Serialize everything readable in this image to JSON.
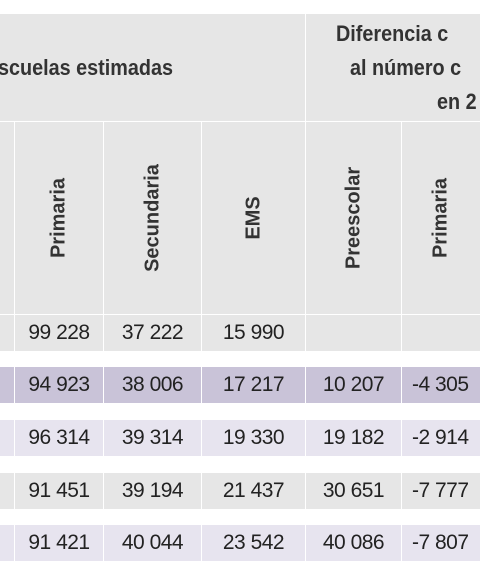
{
  "header": {
    "left_group_title": "scuelas estimadas",
    "right_group_line1": "Diferencia c",
    "right_group_line2": "al número c",
    "right_group_line3": "en 2"
  },
  "columns": [
    {
      "key": "primaria",
      "label": "Primaria"
    },
    {
      "key": "secundaria",
      "label": "Secundaria"
    },
    {
      "key": "ems",
      "label": "EMS"
    },
    {
      "key": "preescolar_diff",
      "label": "Preescolar"
    },
    {
      "key": "primaria_diff",
      "label": "Primaria"
    }
  ],
  "rows": [
    {
      "primaria": "99 228",
      "secundaria": "37 222",
      "ems": "15 990",
      "preescolar_diff": "",
      "primaria_diff": ""
    },
    {
      "primaria": "94 923",
      "secundaria": "38 006",
      "ems": "17 217",
      "preescolar_diff": "10 207",
      "primaria_diff": "-4 305"
    },
    {
      "primaria": "96 314",
      "secundaria": "39 314",
      "ems": "19 330",
      "preescolar_diff": "19 182",
      "primaria_diff": "-2 914"
    },
    {
      "primaria": "91 451",
      "secundaria": "39 194",
      "ems": "21 437",
      "preescolar_diff": "30 651",
      "primaria_diff": "-7 777"
    },
    {
      "primaria": "91 421",
      "secundaria": "40 044",
      "ems": "23 542",
      "preescolar_diff": "40 086",
      "primaria_diff": "-7 807"
    }
  ],
  "colors": {
    "header_bg": "#e6e6e6",
    "row_light": "#e6e6e6",
    "row_purple": "#c9c3d8",
    "row_lavender": "#e7e4ef",
    "text": "#222222"
  }
}
